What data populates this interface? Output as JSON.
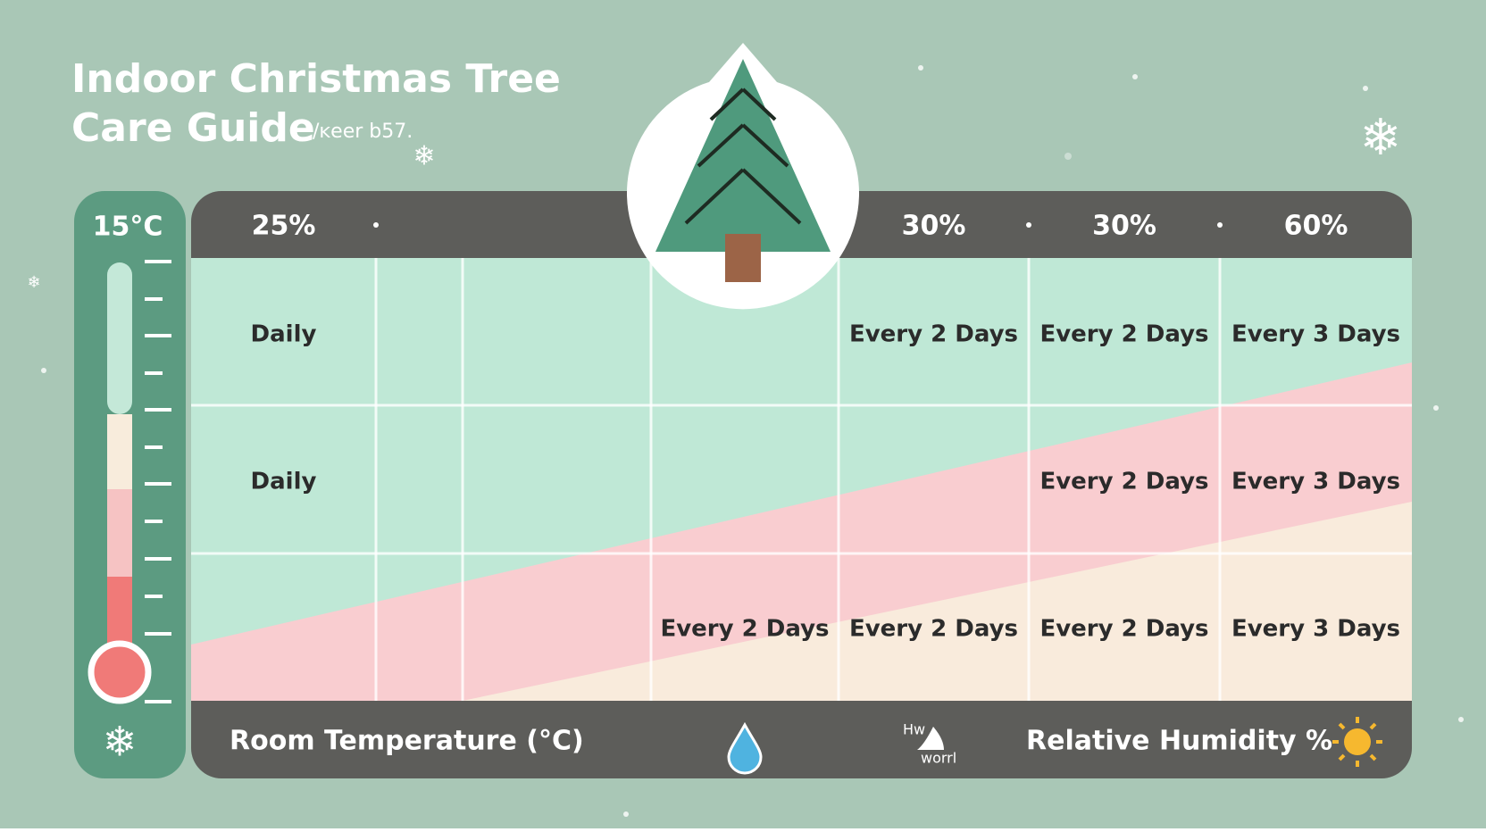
{
  "header": {
    "title_line1": "Indoor Christmas Tree",
    "title_line2": "Care Guide",
    "title_note": "/ĸeer b57."
  },
  "thermometer": {
    "label": "15°C"
  },
  "table": {
    "header": [
      "25%",
      null,
      null,
      null,
      "30%",
      "30%",
      "60%"
    ],
    "rows": [
      [
        "Daily",
        null,
        null,
        null,
        "Every 2 Days",
        "Every 2 Days",
        "Every 3 Days"
      ],
      [
        "Daily",
        null,
        null,
        null,
        null,
        "Every 2 Days",
        "Every 3 Days"
      ],
      [
        null,
        null,
        null,
        "Every 2 Days",
        "Every 2 Days",
        "Every 2 Days",
        "Every 3 Days"
      ]
    ]
  },
  "footer": {
    "x_label": "Room Temperature (°C)",
    "icon_text_top": "Hw",
    "icon_text_bottom": "worrl",
    "y_label": "Relative Humidity %"
  }
}
